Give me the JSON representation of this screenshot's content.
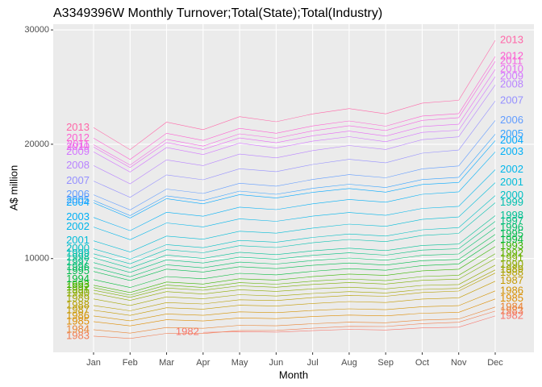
{
  "chart_data": {
    "type": "line",
    "title": "A3349396W Monthly Turnover;Total(State);Total(Industry)",
    "xlabel": "Month",
    "ylabel": "A$ million",
    "categories": [
      "Jan",
      "Feb",
      "Mar",
      "Apr",
      "May",
      "Jun",
      "Jul",
      "Aug",
      "Sep",
      "Oct",
      "Nov",
      "Dec"
    ],
    "ylim": [
      1800,
      30500
    ],
    "yticks": [
      10000,
      20000,
      30000
    ],
    "grid": true,
    "series": [
      {
        "name": "1982",
        "color": "#F8766D",
        "values": [
          null,
          null,
          null,
          3550,
          3610,
          3570,
          3700,
          3810,
          3750,
          3940,
          4000,
          4980
        ]
      },
      {
        "name": "1983",
        "color": "#F27D52",
        "values": [
          3220,
          3010,
          3460,
          3440,
          3710,
          3720,
          3910,
          4070,
          4060,
          4310,
          4430,
          5400
        ]
      },
      {
        "name": "1984",
        "color": "#EA8331",
        "values": [
          3780,
          3480,
          3970,
          3900,
          4160,
          4120,
          4300,
          4440,
          4390,
          4630,
          4720,
          5760
        ]
      },
      {
        "name": "1985",
        "color": "#DE8C00",
        "values": [
          4490,
          4110,
          4650,
          4540,
          4810,
          4750,
          4930,
          5060,
          4990,
          5220,
          5300,
          6470
        ]
      },
      {
        "name": "1986",
        "color": "#D39200",
        "values": [
          4980,
          4560,
          5160,
          5040,
          5340,
          5270,
          5460,
          5610,
          5530,
          5790,
          5880,
          7170
        ]
      },
      {
        "name": "1987",
        "color": "#C49A00",
        "values": [
          5480,
          5030,
          5700,
          5580,
          5920,
          5850,
          6070,
          6240,
          6160,
          6460,
          6570,
          8020
        ]
      },
      {
        "name": "1988",
        "color": "#B79F00",
        "values": [
          5900,
          5430,
          6150,
          6030,
          6400,
          6330,
          6590,
          6780,
          6700,
          7030,
          7160,
          8730
        ]
      },
      {
        "name": "1989",
        "color": "#A3A500",
        "values": [
          6470,
          5900,
          6650,
          6480,
          6840,
          6720,
          6950,
          7110,
          6990,
          7300,
          7390,
          9010
        ]
      },
      {
        "name": "1990",
        "color": "#8FAA00",
        "values": [
          6960,
          6340,
          7110,
          6900,
          7270,
          7130,
          7350,
          7500,
          7350,
          7650,
          7730,
          9430
        ]
      },
      {
        "name": "1991",
        "color": "#7CAE00",
        "values": [
          7240,
          6610,
          7430,
          7230,
          7620,
          7490,
          7740,
          7910,
          7770,
          8100,
          8200,
          10000
        ]
      },
      {
        "name": "1992",
        "color": "#5EB300",
        "values": [
          7460,
          6810,
          7680,
          7470,
          7890,
          7760,
          8030,
          8220,
          8070,
          8430,
          8540,
          10420
        ]
      },
      {
        "name": "1993",
        "color": "#39B600",
        "values": [
          7670,
          7030,
          7950,
          7770,
          8230,
          8120,
          8420,
          8650,
          8530,
          8930,
          9070,
          11060
        ]
      },
      {
        "name": "1994",
        "color": "#00BA38",
        "values": [
          8160,
          7470,
          8430,
          8230,
          8710,
          8580,
          8890,
          9120,
          8980,
          9390,
          9530,
          11630
        ]
      },
      {
        "name": "1995",
        "color": "#00BB4E",
        "values": [
          8870,
          8080,
          9080,
          8820,
          9290,
          9120,
          9410,
          9610,
          9430,
          9820,
          9930,
          12120
        ]
      },
      {
        "name": "1996",
        "color": "#00BE67",
        "values": [
          9220,
          8410,
          9460,
          9190,
          9690,
          9520,
          9830,
          10050,
          9860,
          10280,
          10400,
          12690
        ]
      },
      {
        "name": "1997",
        "color": "#00BF7D",
        "values": [
          9650,
          8790,
          9890,
          9610,
          10130,
          9950,
          10280,
          10500,
          10300,
          10740,
          10860,
          13250
        ]
      },
      {
        "name": "1998",
        "color": "#00C094",
        "values": [
          10070,
          9170,
          10310,
          10010,
          10550,
          10350,
          10680,
          10910,
          10700,
          11150,
          11270,
          13750
        ]
      },
      {
        "name": "1999",
        "color": "#00C0AF",
        "values": [
          10420,
          9540,
          10780,
          10510,
          11130,
          10970,
          11380,
          11670,
          11480,
          12020,
          12200,
          14880
        ]
      },
      {
        "name": "2000",
        "color": "#00BFC4",
        "values": [
          10850,
          9940,
          11220,
          10950,
          11590,
          11430,
          11850,
          12150,
          11970,
          12520,
          12710,
          15510
        ]
      },
      {
        "name": "2001",
        "color": "#00BCD8",
        "values": [
          11550,
          10580,
          11970,
          11690,
          12390,
          12220,
          12670,
          13010,
          12820,
          13430,
          13640,
          16640
        ]
      },
      {
        "name": "2002",
        "color": "#00B6EB",
        "values": [
          12760,
          11650,
          13120,
          12770,
          13480,
          13260,
          13710,
          14030,
          13780,
          14390,
          14570,
          17770
        ]
      },
      {
        "name": "2003",
        "color": "#00B0F6",
        "values": [
          13600,
          12440,
          14050,
          13700,
          14500,
          14280,
          14790,
          15170,
          14930,
          15620,
          15840,
          19330
        ]
      },
      {
        "name": "2004",
        "color": "#00A9FF",
        "values": [
          14880,
          13550,
          15240,
          14790,
          15590,
          15300,
          15790,
          16130,
          15810,
          16480,
          16660,
          20320
        ]
      },
      {
        "name": "2005",
        "color": "#35A2FF",
        "values": [
          15090,
          13760,
          15490,
          15070,
          15900,
          15620,
          16140,
          16500,
          16210,
          16910,
          17110,
          20880
        ]
      },
      {
        "name": "2006",
        "color": "#619CFF",
        "values": [
          15580,
          14250,
          16080,
          15690,
          16590,
          16330,
          16920,
          17340,
          17070,
          17850,
          18100,
          22080
        ]
      },
      {
        "name": "2007",
        "color": "#9590FF",
        "values": [
          16780,
          15350,
          17320,
          16890,
          17860,
          17600,
          18230,
          18680,
          18380,
          19220,
          19490,
          23780
        ]
      },
      {
        "name": "2008",
        "color": "#B983FF",
        "values": [
          18130,
          16540,
          18630,
          18130,
          19140,
          18810,
          19440,
          19890,
          19540,
          20400,
          20650,
          25190
        ]
      },
      {
        "name": "2009",
        "color": "#D376FF",
        "values": [
          19330,
          17570,
          19710,
          19100,
          20090,
          19670,
          20270,
          20660,
          20220,
          21040,
          21230,
          25900
        ]
      },
      {
        "name": "2010",
        "color": "#E76BF3",
        "values": [
          19750,
          17960,
          20150,
          19540,
          20550,
          20130,
          20740,
          21150,
          20710,
          21550,
          21750,
          26540
        ]
      },
      {
        "name": "2011",
        "color": "#F564E3",
        "values": [
          19960,
          18180,
          20430,
          19840,
          20910,
          20520,
          21170,
          21620,
          21200,
          22090,
          22330,
          27240
        ]
      },
      {
        "name": "2012",
        "color": "#FD61D1",
        "values": [
          20530,
          18670,
          20960,
          20330,
          21390,
          20960,
          21600,
          22040,
          21580,
          22470,
          22680,
          27670
        ]
      },
      {
        "name": "2013",
        "color": "#FF66A8",
        "values": [
          21450,
          19520,
          21930,
          21280,
          22410,
          21970,
          22650,
          23120,
          22660,
          23600,
          23840,
          29080
        ]
      }
    ]
  }
}
